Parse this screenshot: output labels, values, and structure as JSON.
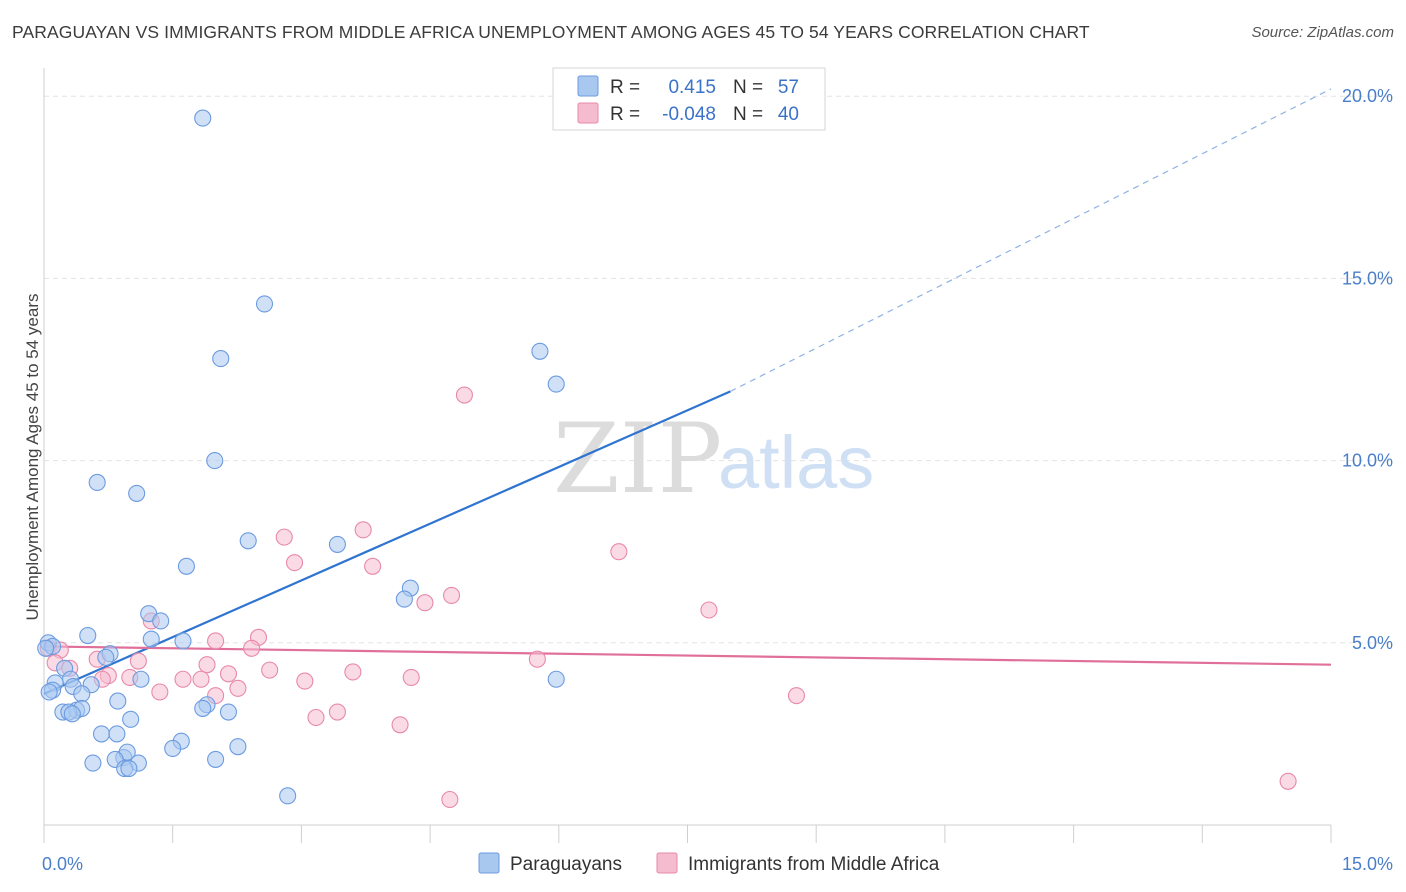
{
  "title": "PARAGUAYAN VS IMMIGRANTS FROM MIDDLE AFRICA UNEMPLOYMENT AMONG AGES 45 TO 54 YEARS CORRELATION CHART",
  "source": "Source: ZipAtlas.com",
  "watermark": {
    "part1": "ZIP",
    "part2": "atlas"
  },
  "colors": {
    "blue_fill": "#a9c8f0",
    "blue_stroke": "#6c9be0",
    "blue_line": "#2f74d0",
    "pink_fill": "#f5bcd0",
    "pink_stroke": "#e889aa",
    "pink_line": "#e0709a",
    "tick_text": "#4a7ec9",
    "grid": "#e3e3e3"
  },
  "legend": {
    "rows": [
      {
        "r_label": "R =",
        "r_value": "0.415",
        "n_label": "N =",
        "n_value": "57"
      },
      {
        "r_label": "R =",
        "r_value": "-0.048",
        "n_label": "N =",
        "n_value": "40"
      }
    ]
  },
  "bottom_legend": [
    "Paraguayans",
    "Immigrants from Middle Africa"
  ],
  "chart_data": {
    "type": "scatter",
    "title": "PARAGUAYAN VS IMMIGRANTS FROM MIDDLE AFRICA UNEMPLOYMENT AMONG AGES 45 TO 54 YEARS CORRELATION CHART",
    "xlabel": "",
    "ylabel": "Unemployment Among Ages 45 to 54 years",
    "xlim": [
      0,
      15
    ],
    "ylim": [
      0,
      20.5
    ],
    "x_tick_labels": [
      {
        "value": 0,
        "label": "0.0%"
      },
      {
        "value": 15,
        "label": "15.0%"
      }
    ],
    "y_tick_labels": [
      {
        "value": 5,
        "label": "5.0%"
      },
      {
        "value": 10,
        "label": "10.0%"
      },
      {
        "value": 15,
        "label": "15.0%"
      },
      {
        "value": 20,
        "label": "20.0%"
      }
    ],
    "x_minor_ticks": [
      0,
      1.5,
      3,
      4.5,
      6,
      7.5,
      9,
      10.5,
      12,
      13.5,
      15
    ],
    "grid": true,
    "legend_position": "top-center",
    "series": [
      {
        "name": "Paraguayans",
        "color": "#6c9be0",
        "trend": {
          "x0": 0,
          "y0": 3.6,
          "x1": 8.0,
          "y1": 11.9,
          "dashed_to_x": 15,
          "dashed_to_y": 20.2
        },
        "points": [
          [
            1.85,
            19.4
          ],
          [
            2.57,
            14.3
          ],
          [
            2.06,
            12.8
          ],
          [
            5.78,
            13.0
          ],
          [
            5.97,
            12.1
          ],
          [
            1.99,
            10.0
          ],
          [
            0.62,
            9.4
          ],
          [
            1.08,
            9.1
          ],
          [
            2.38,
            7.8
          ],
          [
            3.42,
            7.7
          ],
          [
            1.66,
            7.1
          ],
          [
            4.27,
            6.5
          ],
          [
            4.2,
            6.2
          ],
          [
            1.22,
            5.8
          ],
          [
            1.36,
            5.6
          ],
          [
            0.51,
            5.2
          ],
          [
            1.25,
            5.1
          ],
          [
            1.62,
            5.05
          ],
          [
            0.05,
            5.0
          ],
          [
            0.1,
            4.9
          ],
          [
            0.77,
            4.7
          ],
          [
            0.72,
            4.6
          ],
          [
            0.24,
            4.3
          ],
          [
            0.31,
            4.0
          ],
          [
            1.13,
            4.0
          ],
          [
            0.13,
            3.9
          ],
          [
            0.55,
            3.85
          ],
          [
            0.34,
            3.8
          ],
          [
            0.1,
            3.7
          ],
          [
            0.44,
            3.6
          ],
          [
            5.97,
            4.0
          ],
          [
            0.86,
            3.4
          ],
          [
            0.22,
            3.1
          ],
          [
            0.38,
            3.15
          ],
          [
            0.44,
            3.2
          ],
          [
            0.29,
            3.1
          ],
          [
            1.9,
            3.3
          ],
          [
            1.85,
            3.2
          ],
          [
            2.15,
            3.1
          ],
          [
            1.01,
            2.9
          ],
          [
            0.67,
            2.5
          ],
          [
            0.85,
            2.5
          ],
          [
            1.6,
            2.3
          ],
          [
            1.5,
            2.1
          ],
          [
            2.26,
            2.15
          ],
          [
            0.93,
            1.85
          ],
          [
            0.97,
            2.0
          ],
          [
            0.83,
            1.8
          ],
          [
            2.0,
            1.8
          ],
          [
            0.57,
            1.7
          ],
          [
            1.1,
            1.7
          ],
          [
            0.94,
            1.55
          ],
          [
            0.99,
            1.55
          ],
          [
            2.84,
            0.8
          ],
          [
            0.02,
            4.85
          ],
          [
            0.33,
            3.05
          ],
          [
            0.06,
            3.65
          ]
        ]
      },
      {
        "name": "Immigrants from Middle Africa",
        "color": "#e889aa",
        "trend": {
          "x0": 0,
          "y0": 4.9,
          "x1": 15,
          "y1": 4.4
        },
        "points": [
          [
            4.9,
            11.8
          ],
          [
            3.72,
            8.1
          ],
          [
            2.8,
            7.9
          ],
          [
            6.7,
            7.5
          ],
          [
            2.92,
            7.2
          ],
          [
            3.83,
            7.1
          ],
          [
            4.75,
            6.3
          ],
          [
            4.44,
            6.1
          ],
          [
            7.75,
            5.9
          ],
          [
            1.25,
            5.6
          ],
          [
            2.5,
            5.15
          ],
          [
            0.05,
            4.85
          ],
          [
            2.0,
            5.05
          ],
          [
            2.42,
            4.85
          ],
          [
            0.19,
            4.8
          ],
          [
            0.62,
            4.55
          ],
          [
            1.1,
            4.5
          ],
          [
            5.75,
            4.55
          ],
          [
            1.9,
            4.4
          ],
          [
            2.63,
            4.25
          ],
          [
            3.6,
            4.2
          ],
          [
            2.15,
            4.15
          ],
          [
            0.75,
            4.1
          ],
          [
            1.0,
            4.05
          ],
          [
            1.62,
            4.0
          ],
          [
            1.83,
            4.0
          ],
          [
            3.04,
            3.95
          ],
          [
            4.28,
            4.05
          ],
          [
            0.68,
            4.0
          ],
          [
            1.35,
            3.65
          ],
          [
            2.26,
            3.75
          ],
          [
            2.0,
            3.55
          ],
          [
            8.77,
            3.55
          ],
          [
            3.42,
            3.1
          ],
          [
            3.17,
            2.95
          ],
          [
            4.15,
            2.75
          ],
          [
            4.73,
            0.7
          ],
          [
            14.5,
            1.2
          ],
          [
            0.13,
            4.45
          ],
          [
            0.3,
            4.3
          ]
        ]
      }
    ]
  }
}
